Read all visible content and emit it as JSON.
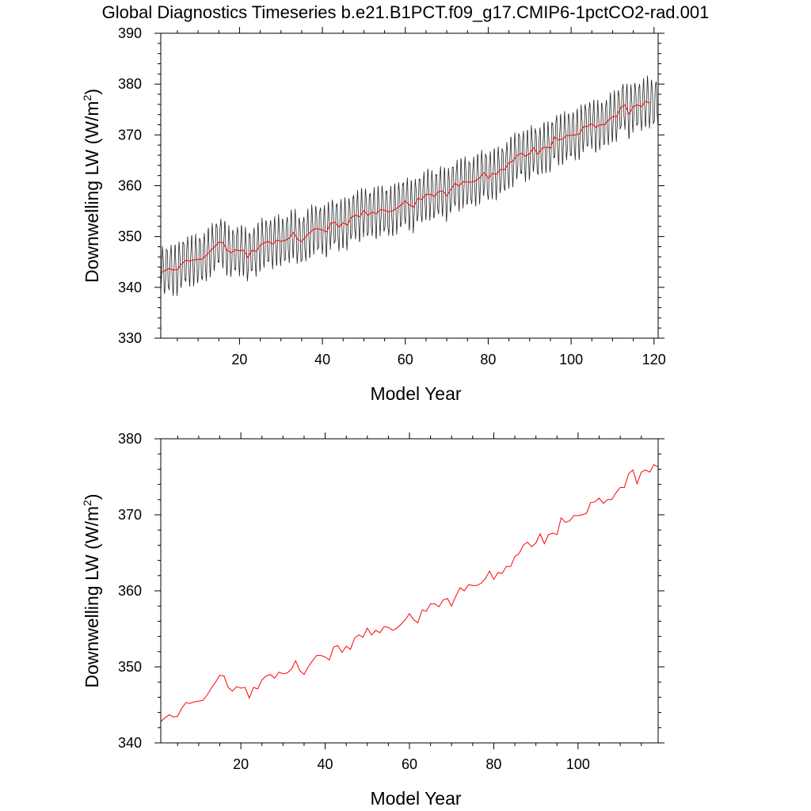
{
  "title": "Global Diagnostics Timeseries b.e21.B1PCT.f09_g17.CMIP6-1pctCO2-rad.001",
  "colors": {
    "monthly": "#000000",
    "annual": "#ff0000",
    "axis": "#000000"
  },
  "chart_data": [
    {
      "type": "line",
      "xlabel": "Model Year",
      "ylabel_main": "Downwelling LW (W/m",
      "ylabel_sup": "2",
      "ylabel_close": ")",
      "xlim": [
        1,
        121
      ],
      "ylim": [
        330,
        390
      ],
      "xticks": [
        20,
        40,
        60,
        80,
        100,
        120
      ],
      "yticks": [
        330,
        340,
        350,
        360,
        370,
        380,
        390
      ],
      "series": [
        {
          "kind": "monthly",
          "color": "#000000",
          "note_amplitude": 4.5,
          "x_start": 1,
          "x_end": 121,
          "months_per_year": 12
        },
        {
          "kind": "annual",
          "color": "#ff0000"
        }
      ]
    },
    {
      "type": "line",
      "xlabel": "Model Year",
      "ylabel_main": "Downwelling LW (W/m",
      "ylabel_sup": "2",
      "ylabel_close": ")",
      "xlim": [
        1,
        119
      ],
      "ylim": [
        340,
        380
      ],
      "xticks": [
        20,
        40,
        60,
        80,
        100
      ],
      "yticks": [
        340,
        350,
        360,
        370,
        380
      ],
      "series": [
        {
          "kind": "annual",
          "color": "#ff0000",
          "x_start": 1,
          "values": [
            342.8,
            343.3,
            343.7,
            343.4,
            343.5,
            344.6,
            345.3,
            345.2,
            345.4,
            345.5,
            345.6,
            346.3,
            347.2,
            348.0,
            348.9,
            348.8,
            347.3,
            346.8,
            347.4,
            347.2,
            347.3,
            345.9,
            347.3,
            347.1,
            348.3,
            348.8,
            349.0,
            348.5,
            349.3,
            349.1,
            349.2,
            349.7,
            350.8,
            349.5,
            349.0,
            350.0,
            350.8,
            351.5,
            351.5,
            351.3,
            350.9,
            352.6,
            352.8,
            351.9,
            352.7,
            352.3,
            353.8,
            354.2,
            353.9,
            355.1,
            354.2,
            354.8,
            354.5,
            355.3,
            355.2,
            354.8,
            355.1,
            355.6,
            356.2,
            357.0,
            356.2,
            355.8,
            357.5,
            357.3,
            358.3,
            358.3,
            357.9,
            358.8,
            359.0,
            358.0,
            359.3,
            360.4,
            360.0,
            360.8,
            360.7,
            360.7,
            361.0,
            361.6,
            362.6,
            361.5,
            362.4,
            362.3,
            363.2,
            363.2,
            364.5,
            364.9,
            366.0,
            366.4,
            365.8,
            366.3,
            367.5,
            366.2,
            367.4,
            367.6,
            367.4,
            369.6,
            369.0,
            369.2,
            369.9,
            369.9,
            370.0,
            370.2,
            371.6,
            371.7,
            372.2,
            371.5,
            372.0,
            372.0,
            372.9,
            373.6,
            373.6,
            375.4,
            375.9,
            374.1,
            375.6,
            375.9,
            375.6,
            376.6,
            376.3
          ]
        }
      ]
    }
  ]
}
